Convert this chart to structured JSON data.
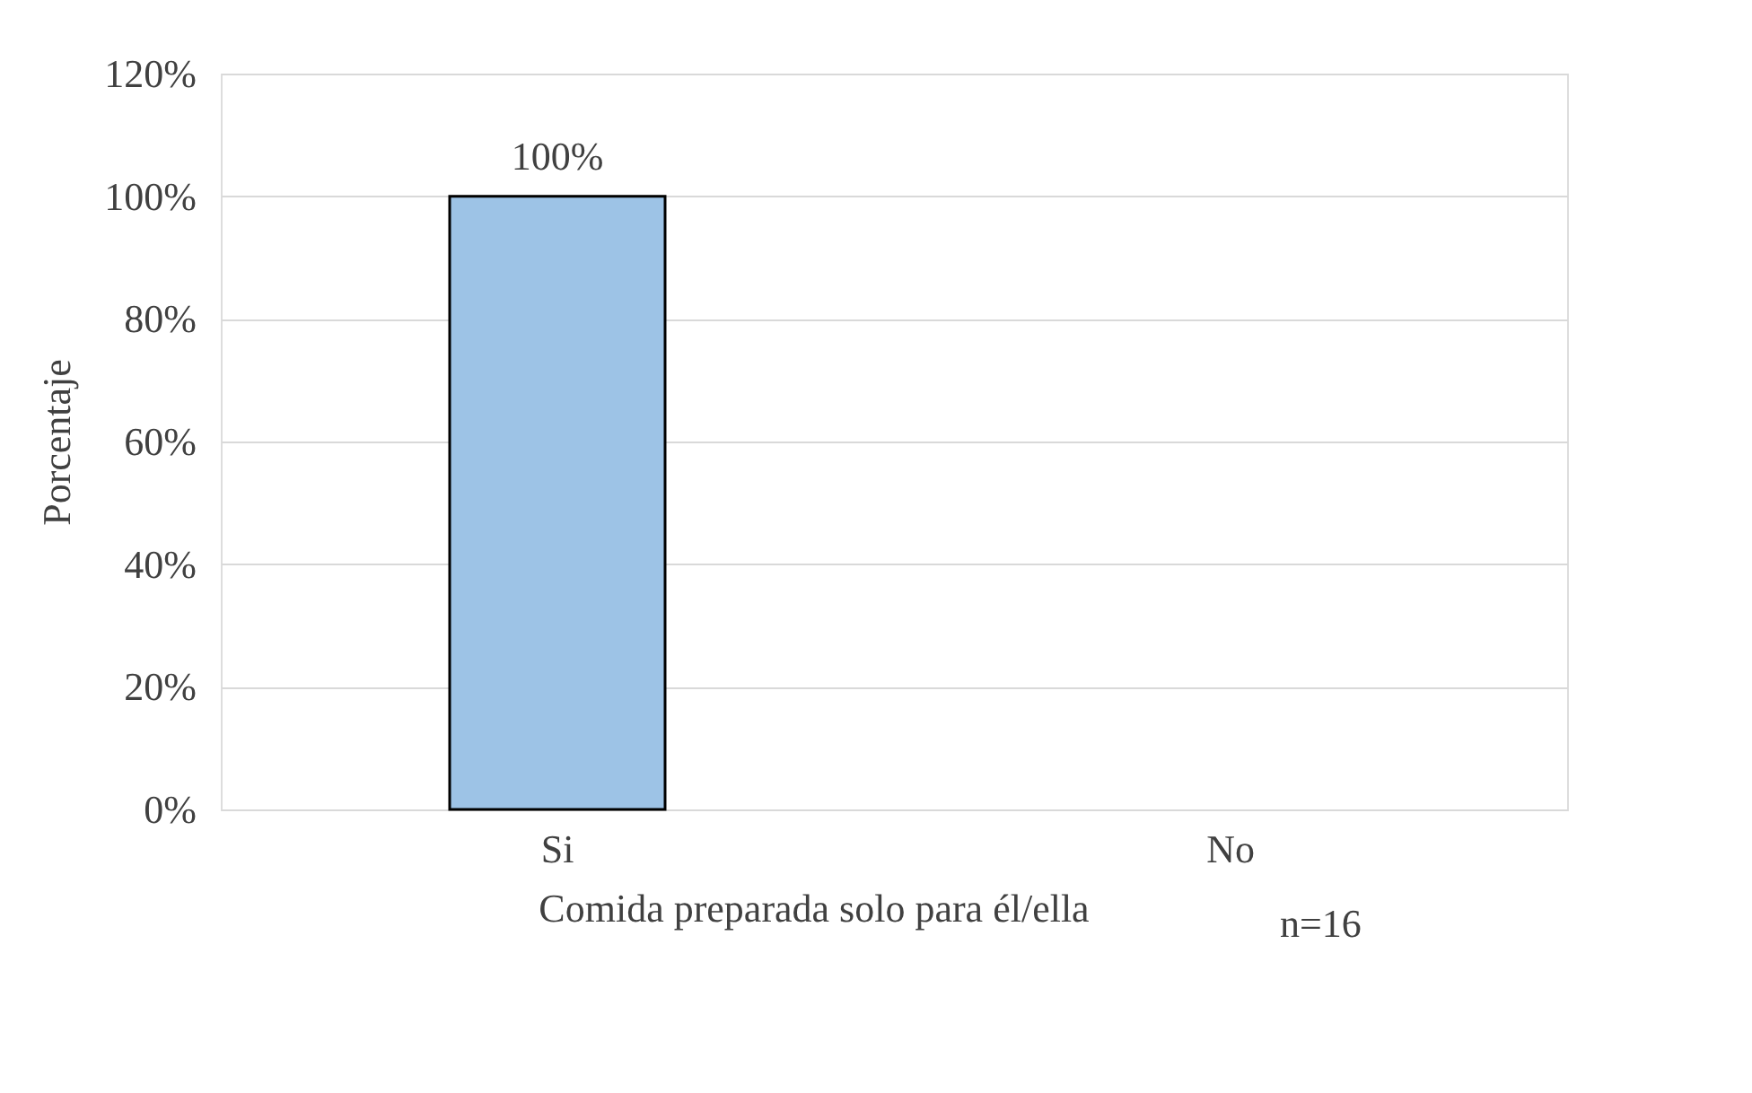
{
  "chart_data": {
    "type": "bar",
    "categories": [
      "Si",
      "No"
    ],
    "values": [
      100,
      0
    ],
    "value_labels": [
      "100%",
      null
    ],
    "color": "#9dc3e6",
    "ylabel": "Porcentaje",
    "xlabel": "Comida preparada solo para él/ella",
    "annotations": [
      "n=16"
    ],
    "ylim": [
      0,
      120
    ],
    "yticks": [
      {
        "value": 0,
        "label": "0%"
      },
      {
        "value": 20,
        "label": "20%"
      },
      {
        "value": 40,
        "label": "40%"
      },
      {
        "value": 60,
        "label": "60%"
      },
      {
        "value": 80,
        "label": "80%"
      },
      {
        "value": 100,
        "label": "100%"
      },
      {
        "value": 120,
        "label": "120%"
      }
    ],
    "grid": "y"
  }
}
